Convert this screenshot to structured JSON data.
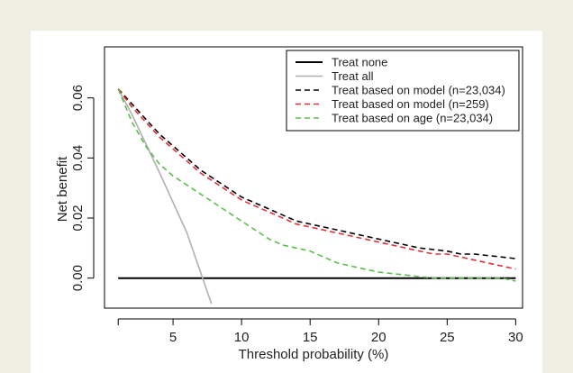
{
  "chart_data": {
    "type": "line",
    "title": "",
    "xlabel": "Threshold probability (%)",
    "ylabel": "Net benefit",
    "xlim": [
      0,
      30.5
    ],
    "ylim": [
      -0.01,
      0.077
    ],
    "x_ticks": [
      "5",
      "10",
      "15",
      "20",
      "25",
      "30"
    ],
    "y_ticks": [
      "0.00",
      "0.02",
      "0.04",
      "0.06"
    ],
    "grid": false,
    "legend_position": "top-right",
    "series": [
      {
        "name": "Treat none",
        "color": "#000000",
        "dash": "solid",
        "x": [
          1,
          30
        ],
        "y": [
          0,
          0
        ]
      },
      {
        "name": "Treat all",
        "color": "#b0b0b0",
        "dash": "solid",
        "x": [
          1,
          2,
          4,
          6,
          7.8
        ],
        "y": [
          0.063,
          0.0545,
          0.0352,
          0.0152,
          -0.0085
        ]
      },
      {
        "name": "Treat based on model (n=23,034)",
        "color": "#000000",
        "dash": "dashed",
        "x": [
          1,
          2,
          3,
          4,
          5,
          6,
          7,
          8,
          9,
          10,
          11,
          12,
          13,
          14,
          15,
          16,
          17,
          18,
          19,
          20,
          21,
          22,
          23,
          24,
          25,
          26,
          27,
          28,
          29,
          30
        ],
        "y": [
          0.063,
          0.058,
          0.053,
          0.048,
          0.044,
          0.04,
          0.036,
          0.033,
          0.03,
          0.027,
          0.025,
          0.023,
          0.021,
          0.019,
          0.018,
          0.017,
          0.016,
          0.015,
          0.014,
          0.013,
          0.012,
          0.011,
          0.01,
          0.0095,
          0.009,
          0.008,
          0.008,
          0.0075,
          0.007,
          0.0065
        ]
      },
      {
        "name": "Treat based on model (n=259)",
        "color": "#e0303a",
        "dash": "dashed",
        "x": [
          1,
          2,
          3,
          4,
          5,
          6,
          7,
          8,
          9,
          10,
          11,
          12,
          13,
          14,
          15,
          16,
          17,
          18,
          19,
          20,
          21,
          22,
          23,
          24,
          25,
          26,
          27,
          28,
          29,
          30
        ],
        "y": [
          0.063,
          0.057,
          0.052,
          0.047,
          0.043,
          0.039,
          0.035,
          0.032,
          0.029,
          0.026,
          0.024,
          0.022,
          0.02,
          0.018,
          0.017,
          0.016,
          0.015,
          0.014,
          0.013,
          0.012,
          0.011,
          0.01,
          0.009,
          0.008,
          0.008,
          0.007,
          0.006,
          0.005,
          0.004,
          0.003
        ]
      },
      {
        "name": "Treat based on age (n=23,034)",
        "color": "#5cbd4e",
        "dash": "dashed",
        "x": [
          1,
          2,
          3,
          4,
          5,
          6,
          7,
          8,
          9,
          10,
          11,
          12,
          13,
          14,
          15,
          16,
          17,
          18,
          19,
          20,
          21,
          22,
          23,
          24,
          25,
          26,
          27,
          28,
          29,
          30
        ],
        "y": [
          0.063,
          0.052,
          0.044,
          0.038,
          0.034,
          0.031,
          0.028,
          0.025,
          0.022,
          0.019,
          0.016,
          0.013,
          0.011,
          0.01,
          0.009,
          0.007,
          0.005,
          0.004,
          0.003,
          0.002,
          0.0015,
          0.001,
          0.0005,
          0.0,
          0.0,
          0.0,
          0.0,
          0.0,
          0.0,
          -0.001
        ]
      }
    ]
  }
}
